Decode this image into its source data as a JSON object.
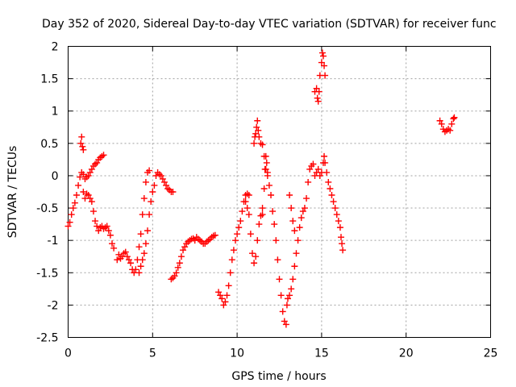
{
  "chart_data": {
    "type": "scatter",
    "title": "Day 352 of 2020, Sidereal Day-to-day VTEC variation (SDTVAR) for receiver func",
    "xlabel": "GPS time / hours",
    "ylabel": "SDTVAR / TECUs",
    "xlim": [
      0,
      25
    ],
    "ylim": [
      -2.5,
      2
    ],
    "xticks": [
      0,
      5,
      10,
      15,
      20,
      25
    ],
    "xtick_labels": [
      "0",
      "5",
      "10",
      "15",
      "20",
      "25"
    ],
    "yticks": [
      -2.5,
      -2,
      -1.5,
      -1,
      -0.5,
      0,
      0.5,
      1,
      1.5,
      2
    ],
    "ytick_labels": [
      "-2.5",
      "-2",
      "-1.5",
      "-1",
      "-0.5",
      "0",
      "0.5",
      "1",
      "1.5",
      "2"
    ],
    "grid": true,
    "marker": "+",
    "color": "#ff0000",
    "series": [
      {
        "name": "SDTVAR",
        "segments": [
          [
            [
              0.0,
              -0.78
            ],
            [
              0.1,
              -0.72
            ],
            [
              0.2,
              -0.6
            ],
            [
              0.3,
              -0.5
            ],
            [
              0.4,
              -0.42
            ],
            [
              0.5,
              -0.3
            ],
            [
              0.6,
              -0.15
            ],
            [
              0.7,
              -0.02
            ],
            [
              0.8,
              0.05
            ],
            [
              0.9,
              0.02
            ],
            [
              1.0,
              -0.05
            ],
            [
              1.1,
              -0.02
            ],
            [
              1.2,
              0.0
            ],
            [
              1.3,
              0.05
            ],
            [
              1.4,
              0.1
            ],
            [
              1.5,
              0.15
            ],
            [
              1.6,
              0.18
            ],
            [
              1.7,
              0.2
            ],
            [
              1.8,
              0.25
            ],
            [
              1.9,
              0.28
            ],
            [
              2.0,
              0.3
            ],
            [
              2.1,
              0.32
            ]
          ],
          [
            [
              0.75,
              0.5
            ],
            [
              0.8,
              0.6
            ],
            [
              0.85,
              0.45
            ],
            [
              0.9,
              0.4
            ]
          ],
          [
            [
              0.9,
              -0.25
            ],
            [
              1.0,
              -0.35
            ],
            [
              1.1,
              -0.28
            ],
            [
              1.2,
              -0.3
            ],
            [
              1.3,
              -0.35
            ],
            [
              1.4,
              -0.4
            ],
            [
              1.5,
              -0.55
            ],
            [
              1.6,
              -0.7
            ],
            [
              1.7,
              -0.78
            ],
            [
              1.8,
              -0.85
            ],
            [
              1.9,
              -0.8
            ],
            [
              2.0,
              -0.78
            ],
            [
              2.1,
              -0.82
            ],
            [
              2.2,
              -0.8
            ],
            [
              2.3,
              -0.78
            ],
            [
              2.4,
              -0.85
            ],
            [
              2.5,
              -0.92
            ],
            [
              2.6,
              -1.05
            ],
            [
              2.7,
              -1.12
            ]
          ],
          [
            [
              2.9,
              -1.3
            ],
            [
              3.0,
              -1.22
            ],
            [
              3.1,
              -1.28
            ],
            [
              3.2,
              -1.25
            ],
            [
              3.3,
              -1.2
            ],
            [
              3.4,
              -1.18
            ],
            [
              3.5,
              -1.25
            ],
            [
              3.6,
              -1.3
            ],
            [
              3.7,
              -1.35
            ],
            [
              3.8,
              -1.45
            ],
            [
              3.9,
              -1.5
            ],
            [
              4.0,
              -1.45
            ],
            [
              4.1,
              -1.3
            ],
            [
              4.2,
              -1.1
            ],
            [
              4.3,
              -0.9
            ],
            [
              4.4,
              -0.6
            ],
            [
              4.5,
              -0.35
            ],
            [
              4.6,
              -0.1
            ],
            [
              4.7,
              0.05
            ],
            [
              4.8,
              0.08
            ]
          ],
          [
            [
              4.2,
              -1.5
            ],
            [
              4.3,
              -1.4
            ],
            [
              4.4,
              -1.3
            ],
            [
              4.5,
              -1.2
            ],
            [
              4.6,
              -1.05
            ],
            [
              4.7,
              -0.85
            ],
            [
              4.8,
              -0.6
            ],
            [
              4.9,
              -0.4
            ],
            [
              5.0,
              -0.25
            ],
            [
              5.1,
              -0.15
            ],
            [
              5.2,
              0.0
            ],
            [
              5.3,
              0.05
            ],
            [
              5.4,
              0.02
            ],
            [
              5.5,
              0.0
            ],
            [
              5.6,
              -0.05
            ],
            [
              5.7,
              -0.1
            ],
            [
              5.8,
              -0.15
            ],
            [
              5.9,
              -0.2
            ],
            [
              6.0,
              -0.22
            ],
            [
              6.1,
              -0.25
            ],
            [
              6.2,
              -0.25
            ]
          ],
          [
            [
              6.1,
              -1.6
            ],
            [
              6.2,
              -1.58
            ],
            [
              6.3,
              -1.55
            ],
            [
              6.4,
              -1.5
            ],
            [
              6.5,
              -1.42
            ],
            [
              6.6,
              -1.35
            ],
            [
              6.7,
              -1.25
            ],
            [
              6.8,
              -1.15
            ],
            [
              6.9,
              -1.1
            ],
            [
              7.0,
              -1.05
            ],
            [
              7.1,
              -1.02
            ],
            [
              7.2,
              -1.0
            ],
            [
              7.3,
              -0.98
            ],
            [
              7.4,
              -0.97
            ],
            [
              7.5,
              -1.0
            ],
            [
              7.6,
              -0.95
            ],
            [
              7.7,
              -0.98
            ],
            [
              7.8,
              -1.0
            ],
            [
              7.9,
              -1.02
            ],
            [
              8.0,
              -1.05
            ],
            [
              8.1,
              -1.05
            ],
            [
              8.2,
              -1.02
            ],
            [
              8.3,
              -1.0
            ],
            [
              8.4,
              -0.98
            ],
            [
              8.5,
              -0.95
            ],
            [
              8.6,
              -0.93
            ],
            [
              8.7,
              -0.92
            ]
          ],
          [
            [
              8.9,
              -1.8
            ],
            [
              9.0,
              -1.85
            ],
            [
              9.1,
              -1.9
            ],
            [
              9.2,
              -2.0
            ],
            [
              9.3,
              -1.95
            ],
            [
              9.4,
              -1.85
            ],
            [
              9.5,
              -1.7
            ],
            [
              9.6,
              -1.5
            ],
            [
              9.7,
              -1.3
            ],
            [
              9.8,
              -1.15
            ],
            [
              9.9,
              -1.0
            ],
            [
              10.0,
              -0.9
            ],
            [
              10.1,
              -0.8
            ],
            [
              10.2,
              -0.7
            ],
            [
              10.3,
              -0.55
            ],
            [
              10.4,
              -0.4
            ],
            [
              10.5,
              -0.3
            ],
            [
              10.6,
              -0.28
            ],
            [
              10.7,
              -0.3
            ]
          ],
          [
            [
              10.5,
              -0.4
            ],
            [
              10.6,
              -0.5
            ],
            [
              10.7,
              -0.6
            ],
            [
              10.8,
              -0.9
            ],
            [
              10.9,
              -1.2
            ],
            [
              11.0,
              -1.35
            ],
            [
              11.1,
              -1.25
            ],
            [
              11.2,
              -1.0
            ],
            [
              11.3,
              -0.75
            ],
            [
              11.4,
              -0.62
            ],
            [
              11.5,
              -0.6
            ]
          ],
          [
            [
              11.0,
              0.5
            ],
            [
              11.05,
              0.6
            ],
            [
              11.1,
              0.65
            ],
            [
              11.15,
              0.75
            ],
            [
              11.2,
              0.85
            ],
            [
              11.25,
              0.7
            ],
            [
              11.3,
              0.6
            ],
            [
              11.4,
              0.5
            ],
            [
              11.5,
              0.48
            ],
            [
              11.6,
              0.3
            ],
            [
              11.7,
              0.1
            ],
            [
              11.8,
              0.0
            ],
            [
              11.9,
              -0.15
            ],
            [
              12.0,
              -0.3
            ],
            [
              12.1,
              -0.55
            ],
            [
              12.2,
              -0.75
            ],
            [
              12.3,
              -1.0
            ],
            [
              12.4,
              -1.3
            ],
            [
              12.5,
              -1.6
            ],
            [
              12.6,
              -1.85
            ],
            [
              12.7,
              -2.1
            ],
            [
              12.8,
              -2.25
            ],
            [
              12.9,
              -2.3
            ]
          ],
          [
            [
              11.5,
              -0.5
            ],
            [
              11.6,
              -0.2
            ],
            [
              11.65,
              0.1
            ],
            [
              11.7,
              0.3
            ],
            [
              11.75,
              0.2
            ],
            [
              11.8,
              0.05
            ]
          ],
          [
            [
              12.95,
              -2.0
            ],
            [
              13.0,
              -1.9
            ],
            [
              13.1,
              -1.85
            ],
            [
              13.2,
              -1.75
            ],
            [
              13.3,
              -1.6
            ],
            [
              13.4,
              -1.4
            ],
            [
              13.5,
              -1.2
            ],
            [
              13.6,
              -1.0
            ],
            [
              13.7,
              -0.8
            ],
            [
              13.8,
              -0.65
            ],
            [
              13.9,
              -0.55
            ],
            [
              14.0,
              -0.5
            ],
            [
              14.1,
              -0.35
            ],
            [
              14.2,
              -0.1
            ],
            [
              14.3,
              0.1
            ],
            [
              14.4,
              0.15
            ],
            [
              14.5,
              0.18
            ]
          ],
          [
            [
              13.1,
              -0.3
            ],
            [
              13.2,
              -0.5
            ],
            [
              13.3,
              -0.7
            ],
            [
              13.4,
              -0.85
            ]
          ],
          [
            [
              14.6,
              1.3
            ],
            [
              14.7,
              1.35
            ],
            [
              14.75,
              1.2
            ],
            [
              14.8,
              1.15
            ],
            [
              14.85,
              1.3
            ],
            [
              14.9,
              1.55
            ],
            [
              15.0,
              1.75
            ],
            [
              15.05,
              1.9
            ],
            [
              15.1,
              1.85
            ],
            [
              15.15,
              1.7
            ],
            [
              15.2,
              1.55
            ]
          ],
          [
            [
              14.6,
              0.0
            ],
            [
              14.7,
              0.05
            ],
            [
              14.8,
              0.1
            ],
            [
              14.9,
              0.0
            ],
            [
              15.0,
              0.05
            ],
            [
              15.1,
              0.2
            ],
            [
              15.15,
              0.3
            ],
            [
              15.2,
              0.2
            ],
            [
              15.3,
              0.05
            ],
            [
              15.4,
              -0.1
            ],
            [
              15.5,
              -0.2
            ],
            [
              15.6,
              -0.3
            ],
            [
              15.7,
              -0.4
            ],
            [
              15.8,
              -0.5
            ],
            [
              15.9,
              -0.6
            ],
            [
              16.0,
              -0.7
            ],
            [
              16.1,
              -0.8
            ],
            [
              16.15,
              -0.95
            ],
            [
              16.2,
              -1.05
            ],
            [
              16.25,
              -1.15
            ]
          ],
          [
            [
              22.0,
              0.85
            ],
            [
              22.1,
              0.8
            ],
            [
              22.2,
              0.72
            ],
            [
              22.3,
              0.68
            ],
            [
              22.4,
              0.7
            ],
            [
              22.5,
              0.72
            ],
            [
              22.6,
              0.7
            ],
            [
              22.7,
              0.8
            ],
            [
              22.8,
              0.88
            ],
            [
              22.85,
              0.9
            ]
          ]
        ]
      }
    ]
  }
}
